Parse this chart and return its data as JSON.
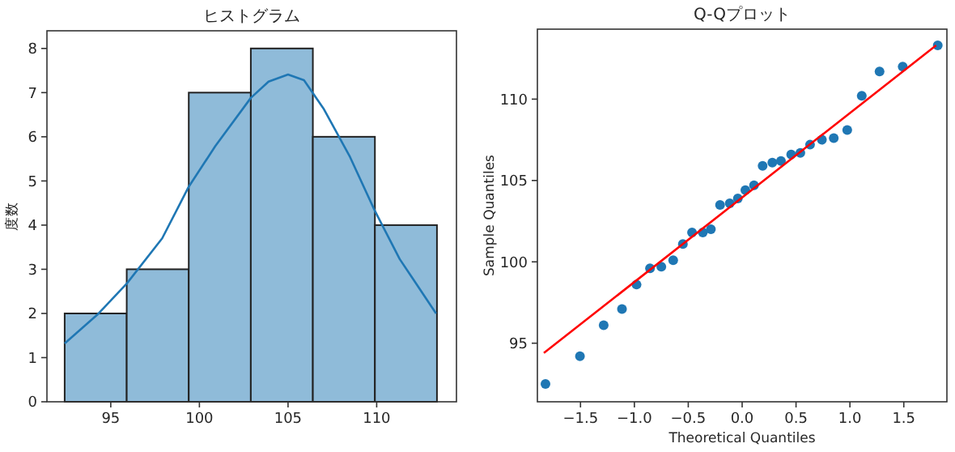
{
  "chart_data": [
    {
      "type": "histogram",
      "title": "ヒストグラム",
      "ylabel": "度数",
      "bins": [
        92.4,
        95.9,
        99.4,
        102.9,
        106.4,
        109.9,
        113.4
      ],
      "values": [
        2,
        3,
        7,
        8,
        6,
        4
      ],
      "color": "#8fbbd9",
      "xlim": [
        91.4,
        114.5
      ],
      "ylim": [
        0,
        8.4
      ],
      "xticks": [
        95,
        100,
        105,
        110
      ],
      "yticks": [
        0,
        1,
        2,
        3,
        4,
        5,
        6,
        7,
        8
      ],
      "series": [
        {
          "type": "line",
          "color": "#1f77b4",
          "x": [
            92.4,
            94.24,
            95.91,
            97.9,
            99.4,
            100.9,
            102.9,
            103.9,
            105.0,
            105.9,
            107.0,
            108.5,
            109.9,
            111.3,
            113.35
          ],
          "values": [
            1.32,
            1.97,
            2.68,
            3.7,
            4.87,
            5.79,
            6.88,
            7.25,
            7.41,
            7.28,
            6.64,
            5.54,
            4.32,
            3.23,
            2.0
          ]
        }
      ]
    },
    {
      "type": "scatter",
      "title": "Q-Qプロット",
      "xlabel": "Theoretical Quantiles",
      "ylabel": "Sample Quantiles",
      "xlim": [
        -1.9,
        1.9
      ],
      "ylim": [
        91.4,
        114.3
      ],
      "xticks": [
        {
          "value": -1.5,
          "label": "−1.5"
        },
        {
          "value": -1.0,
          "label": "−1.0"
        },
        {
          "value": -0.5,
          "label": "−0.5"
        },
        {
          "value": 0.0,
          "label": "0.0"
        },
        {
          "value": 0.5,
          "label": "0.5"
        },
        {
          "value": 1.0,
          "label": "1.0"
        },
        {
          "value": 1.5,
          "label": "1.5"
        }
      ],
      "yticks": [
        95,
        100,
        105,
        110
      ],
      "series": [
        {
          "type": "scatter",
          "marker": "circle",
          "color": "#1f77b4",
          "x": [
            -1.825,
            -1.505,
            -1.285,
            -1.115,
            -0.98,
            -0.855,
            -0.75,
            -0.64,
            -0.55,
            -0.465,
            -0.365,
            -0.29,
            -0.205,
            -0.115,
            -0.04,
            0.03,
            0.11,
            0.19,
            0.28,
            0.36,
            0.455,
            0.54,
            0.63,
            0.74,
            0.85,
            0.975,
            1.11,
            1.275,
            1.49,
            1.815
          ],
          "values": [
            92.5,
            94.2,
            96.1,
            97.1,
            98.6,
            99.6,
            99.7,
            100.1,
            101.1,
            101.8,
            101.8,
            102.0,
            103.5,
            103.6,
            103.9,
            104.4,
            104.7,
            105.9,
            106.1,
            106.2,
            106.6,
            106.7,
            107.2,
            107.5,
            107.6,
            108.1,
            110.2,
            111.7,
            112.0,
            113.3
          ]
        },
        {
          "type": "line",
          "color": "#ff0000",
          "x": [
            -1.84,
            1.8
          ],
          "values": [
            94.4,
            113.3
          ]
        }
      ]
    }
  ]
}
